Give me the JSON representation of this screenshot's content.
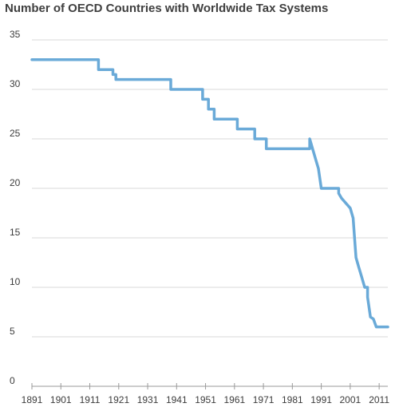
{
  "chart_data": {
    "type": "line",
    "title": "Number of OECD Countries with Worldwide Tax Systems",
    "xlabel": "",
    "ylabel": "",
    "xlim": [
      1891,
      2014
    ],
    "ylim": [
      0,
      35
    ],
    "y_ticks": [
      "0",
      "5",
      "10",
      "15",
      "20",
      "25",
      "30",
      "35"
    ],
    "x_ticks": [
      "1891",
      "1901",
      "1911",
      "1921",
      "1931",
      "1941",
      "1951",
      "1961",
      "1971",
      "1981",
      "1991",
      "2001",
      "2011"
    ],
    "grid": "horizontal",
    "legend": "none",
    "series": [
      {
        "color": "#6aaad8",
        "x": [
          1891,
          1914,
          1914,
          1919,
          1919,
          1920,
          1920,
          1939,
          1939,
          1950,
          1950,
          1952,
          1952,
          1954,
          1954,
          1962,
          1962,
          1968,
          1968,
          1972,
          1972,
          1978,
          1978,
          1987,
          1987,
          1988,
          1989,
          1990,
          1991,
          1991,
          1997,
          1997,
          1998,
          1998,
          2001,
          2001,
          2002,
          2003,
          2004,
          2005,
          2006,
          2007,
          2007,
          2008,
          2008,
          2009,
          2010,
          2011,
          2014
        ],
        "y": [
          33,
          33,
          32,
          32,
          31.5,
          31.5,
          31,
          31,
          30,
          30,
          29,
          29,
          28,
          28,
          27,
          27,
          26,
          26,
          25,
          25,
          24,
          24,
          24,
          24,
          25,
          24,
          23,
          22,
          20,
          20,
          20,
          19.5,
          19,
          19,
          18,
          18,
          17,
          13,
          12,
          11,
          10,
          10,
          9,
          7,
          7,
          6.8,
          6,
          6,
          6
        ]
      }
    ]
  }
}
